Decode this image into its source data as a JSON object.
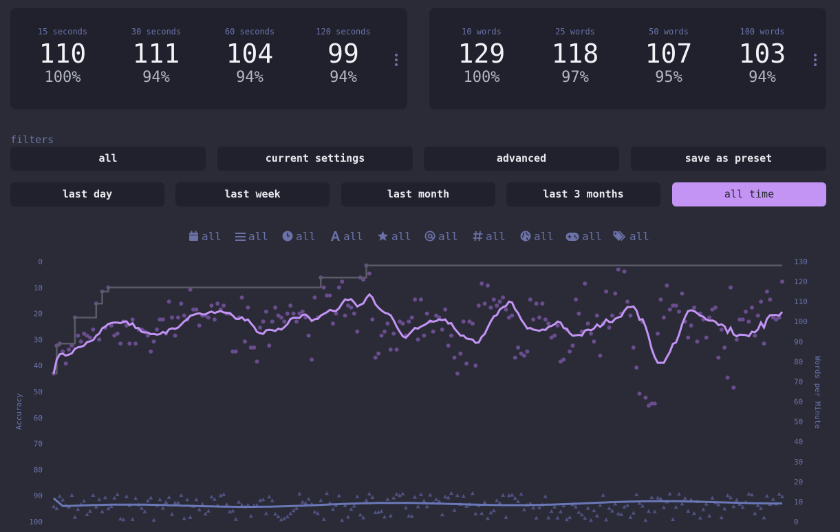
{
  "personal_bests_time": [
    {
      "label": "15 seconds",
      "wpm": "110",
      "acc": "100%"
    },
    {
      "label": "30 seconds",
      "wpm": "111",
      "acc": "94%"
    },
    {
      "label": "60 seconds",
      "wpm": "104",
      "acc": "94%"
    },
    {
      "label": "120 seconds",
      "wpm": "99",
      "acc": "94%"
    }
  ],
  "personal_bests_words": [
    {
      "label": "10 words",
      "wpm": "129",
      "acc": "100%"
    },
    {
      "label": "25 words",
      "wpm": "118",
      "acc": "97%"
    },
    {
      "label": "50 words",
      "wpm": "107",
      "acc": "95%"
    },
    {
      "label": "100 words",
      "wpm": "103",
      "acc": "94%"
    }
  ],
  "filters": {
    "label": "filters",
    "presets": [
      "all",
      "current settings",
      "advanced",
      "save as preset"
    ],
    "time_ranges": [
      "last day",
      "last week",
      "last month",
      "last 3 months",
      "all time"
    ],
    "active_time_range": "all time"
  },
  "quick_filters": [
    {
      "icon": "calendar-icon",
      "label": "all"
    },
    {
      "icon": "list-icon",
      "label": "all"
    },
    {
      "icon": "clock-icon",
      "label": "all"
    },
    {
      "icon": "font-icon",
      "label": "all"
    },
    {
      "icon": "star-icon",
      "label": "all"
    },
    {
      "icon": "at-icon",
      "label": "all"
    },
    {
      "icon": "hash-icon",
      "label": "all"
    },
    {
      "icon": "globe-icon",
      "label": "all"
    },
    {
      "icon": "gamepad-icon",
      "label": "all"
    },
    {
      "icon": "tags-icon",
      "label": "all"
    }
  ],
  "colors": {
    "background": "#2a2b37",
    "card": "#20212c",
    "accent": "#c494f5",
    "sub": "#6b72a8",
    "pb_line": "#5a5b66",
    "wpm_points": "#6a4d8f",
    "acc_points": "#4f5280",
    "acc_avg": "#6b78b8"
  },
  "chart_data": {
    "type": "scatter",
    "y_left": {
      "label": "Accuracy",
      "ticks": [
        "0",
        "10",
        "20",
        "30",
        "40",
        "50",
        "60",
        "70",
        "80",
        "90",
        "100"
      ],
      "range": [
        0,
        100
      ],
      "inverted": true
    },
    "y_right": {
      "label": "Words per Minute",
      "ticks": [
        "0",
        "10",
        "20",
        "30",
        "40",
        "50",
        "60",
        "70",
        "80",
        "90",
        "100",
        "110",
        "120",
        "130"
      ],
      "range": [
        0,
        130
      ]
    },
    "grid": false,
    "series": [
      {
        "kind": "wpm_points",
        "values": [
          74,
          88,
          89,
          85,
          79,
          86,
          88,
          102,
          93,
          90,
          94,
          93,
          92,
          96,
          109,
          91,
          115,
          97,
          117,
          98,
          93,
          94,
          89,
          100,
          98,
          89,
          101,
          89,
          96,
          96,
          95,
          93,
          85,
          90,
          96,
          101,
          101,
          94,
          110,
          102,
          93,
          102,
          109,
          103,
          101,
          116,
          106,
          106,
          98,
          103,
          103,
          102,
          108,
          101,
          109,
          106,
          108,
          104,
          104,
          85,
          85,
          102,
          112,
          90,
          107,
          87,
          87,
          80,
          97,
          100,
          105,
          88,
          100,
          107,
          103,
          102,
          100,
          104,
          108,
          104,
          100,
          104,
          105,
          102,
          93,
          81,
          112,
          102,
          122,
          117,
          113,
          113,
          99,
          104,
          117,
          120,
          103,
          108,
          107,
          104,
          95,
          122,
          121,
          128,
          124,
          101,
          82,
          84,
          93,
          95,
          99,
          86,
          94,
          86,
          100,
          99,
          93,
          100,
          102,
          111,
          91,
          111,
          93,
          104,
          100,
          95,
          103,
          102,
          96,
          106,
          88,
          93,
          82,
          74,
          84,
          100,
          79,
          100,
          99,
          78,
          108,
          119,
          109,
          118,
          107,
          111,
          108,
          110,
          112,
          106,
          102,
          103,
          82,
          87,
          84,
          83,
          85,
          111,
          101,
          109,
          102,
          109,
          101,
          99,
          92,
          93,
          98,
          80,
          81,
          96,
          85,
          88,
          111,
          104,
          95,
          119,
          99,
          94,
          90,
          103,
          83,
          99,
          115,
          97,
          103,
          114,
          126,
          104,
          125,
          110,
          103,
          87,
          77,
          64,
          100,
          62,
          58,
          59,
          59,
          94,
          111,
          102,
          118,
          106,
          108,
          108,
          105,
          114,
          100,
          92,
          98,
          107,
          90,
          104,
          101,
          92,
          102,
          106,
          107,
          82,
          96,
          87,
          72,
          117,
          67,
          91,
          101,
          101,
          105,
          100,
          107,
          93,
          103,
          110,
          89,
          115,
          111,
          102,
          101,
          102,
          120
        ],
        "note": "approximate positions read from the scatter"
      },
      {
        "kind": "wpm_average",
        "color": "#c494f5"
      },
      {
        "kind": "personal_best",
        "color": "#5a5b66"
      },
      {
        "kind": "accuracy_points"
      },
      {
        "kind": "accuracy_average",
        "color": "#6b78b8"
      }
    ]
  }
}
